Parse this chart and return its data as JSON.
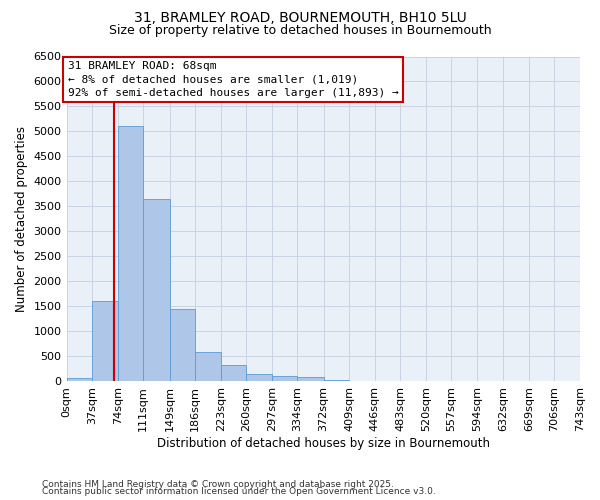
{
  "title_line1": "31, BRAMLEY ROAD, BOURNEMOUTH, BH10 5LU",
  "title_line2": "Size of property relative to detached houses in Bournemouth",
  "xlabel": "Distribution of detached houses by size in Bournemouth",
  "ylabel": "Number of detached properties",
  "annotation_title": "31 BRAMLEY ROAD: 68sqm",
  "annotation_line2": "← 8% of detached houses are smaller (1,019)",
  "annotation_line3": "92% of semi-detached houses are larger (11,893) →",
  "footnote1": "Contains HM Land Registry data © Crown copyright and database right 2025.",
  "footnote2": "Contains public sector information licensed under the Open Government Licence v3.0.",
  "property_size": 68,
  "bin_edges": [
    0,
    37,
    74,
    111,
    149,
    186,
    223,
    260,
    297,
    334,
    372,
    409,
    446,
    483,
    520,
    557,
    594,
    632,
    669,
    706,
    743
  ],
  "bar_heights": [
    60,
    1600,
    5100,
    3650,
    1450,
    580,
    320,
    150,
    110,
    80,
    30,
    10,
    5,
    3,
    1,
    1,
    0,
    0,
    0,
    0
  ],
  "bar_color": "#aec6e8",
  "bar_edge_color": "#5b9bd5",
  "vline_color": "#cc0000",
  "annotation_box_edge_color": "#cc0000",
  "bg_axes": "#eaf0f8",
  "grid_color": "#c8d4e4",
  "ylim_max": 6500,
  "ytick_interval": 500,
  "tick_label_fontsize": 8,
  "axis_label_fontsize": 8.5,
  "title1_fontsize": 10,
  "title2_fontsize": 9,
  "annot_fontsize": 8,
  "footnote_fontsize": 6.5
}
